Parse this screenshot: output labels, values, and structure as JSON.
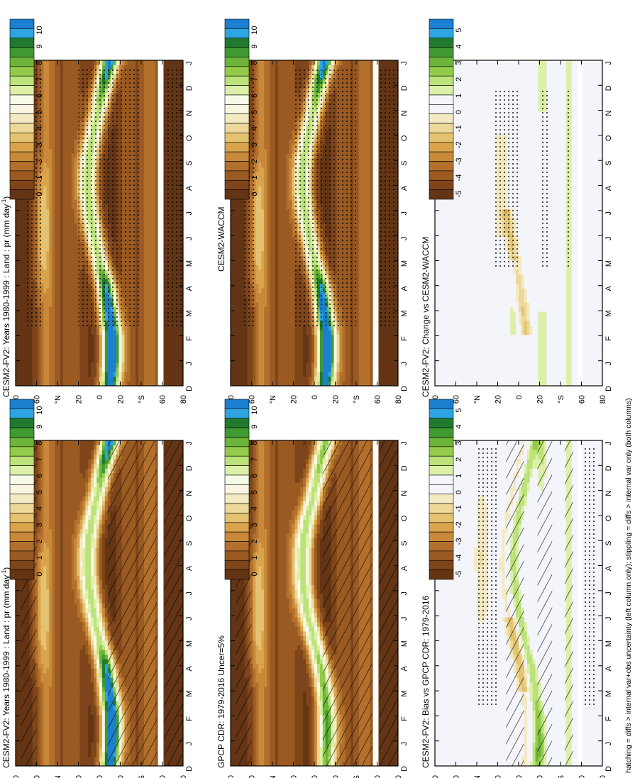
{
  "chart_data": {
    "type": "heatmap",
    "footnote": "hatching = diffs > internal var+obs uncertainty (left column only); stippling = diffs > internal var only (both columns)",
    "x_ticks": [
      "D",
      "J",
      "F",
      "M",
      "A",
      "M",
      "J",
      "J",
      "A",
      "S",
      "O",
      "N",
      "D",
      "J"
    ],
    "y_ticks": [
      "80",
      "60",
      "°N",
      "20",
      "0",
      "20",
      "°S",
      "60",
      "80"
    ],
    "colorbars": {
      "absolute": {
        "labels": [
          "10",
          "9",
          "8",
          "7",
          "6",
          "5",
          "4",
          "3",
          "2",
          "1",
          "0"
        ],
        "colors": [
          "#1c7fd0",
          "#2ea4e2",
          "#1f7a2e",
          "#3f9a32",
          "#6cb43a",
          "#94cb4a",
          "#bce27a",
          "#dcf0a8",
          "#f6fbe8",
          "#fbf6e2",
          "#f4eac2",
          "#ecd99a",
          "#e3c270",
          "#d9a44c",
          "#c8893a",
          "#b3702c",
          "#9a5a22",
          "#7e451a",
          "#643514"
        ]
      },
      "difference": {
        "labels": [
          "5",
          "4",
          "3",
          "2",
          "1",
          "0",
          "-1",
          "-2",
          "-3",
          "-4",
          "-5"
        ],
        "colors": [
          "#1c7fd0",
          "#2ea4e2",
          "#1f7a2e",
          "#3f9a32",
          "#6cb43a",
          "#94cb4a",
          "#bce27a",
          "#dcf0a8",
          "#f4f5fb",
          "#f4f5fb",
          "#f4eac2",
          "#ecd99a",
          "#e3c270",
          "#d9a44c",
          "#c8893a",
          "#b3702c",
          "#9a5a22",
          "#7e451a",
          "#643514"
        ]
      }
    },
    "panels": [
      {
        "id": "model-fv2-left",
        "title": "CESM2-FV2: Years 1980-1999 : Land : pr (mm day",
        "units_sup": "-1",
        "title_end": ")",
        "kind": "absolute",
        "itcz": [
          -10,
          -12,
          -12,
          -9,
          -6,
          0,
          5,
          9,
          11,
          10,
          6,
          1,
          -4,
          -10
        ],
        "peak": [
          11,
          12,
          12,
          11,
          10,
          7,
          7,
          7,
          7,
          7,
          7,
          7,
          9,
          11
        ],
        "hatch": true,
        "stipple": false
      },
      {
        "id": "obs-gpcp",
        "title": "GPCP CDR: 1979-2016 Uncer=5%",
        "units_sup": "",
        "title_end": "",
        "kind": "absolute",
        "itcz": [
          -11,
          -12,
          -12,
          -10,
          -6,
          0,
          6,
          10,
          11,
          10,
          6,
          0,
          -5,
          -11
        ],
        "peak": [
          8,
          8.5,
          8.5,
          8,
          7.5,
          7,
          7,
          7,
          7,
          7,
          7,
          7,
          7.5,
          8
        ],
        "hatch": true,
        "stipple": false
      },
      {
        "id": "bias-fv2",
        "title": "CESM2-FV2: Bias vs GPCP CDR: 1979-2016",
        "units_sup": "",
        "title_end": "",
        "kind": "difference",
        "hatch": true,
        "stipple": true
      },
      {
        "id": "model-fv2-right",
        "title": "CESM2-FV2: Years 1980-1999 : Land : pr (mm day",
        "units_sup": "-1",
        "title_end": ")",
        "kind": "absolute",
        "itcz": [
          -10,
          -12,
          -12,
          -9,
          -6,
          0,
          5,
          9,
          11,
          10,
          6,
          1,
          -4,
          -10
        ],
        "peak": [
          11,
          12,
          12,
          11,
          10,
          7,
          7,
          7,
          7,
          7,
          7,
          7,
          9,
          11
        ],
        "hatch": false,
        "stipple": true
      },
      {
        "id": "model-waccm",
        "title": "CESM2-WACCM",
        "units_sup": "",
        "title_end": "",
        "kind": "absolute",
        "itcz": [
          -10,
          -12,
          -12,
          -9,
          -6,
          0,
          5,
          9,
          11,
          10,
          6,
          1,
          -4,
          -10
        ],
        "peak": [
          11,
          12,
          12,
          11,
          10,
          7,
          7,
          7,
          7,
          7,
          7,
          7,
          9,
          11
        ],
        "hatch": false,
        "stipple": true
      },
      {
        "id": "change-fv2-waccm",
        "title": "CESM2-FV2: Change vs CESM2-WACCM",
        "units_sup": "",
        "title_end": "",
        "kind": "difference",
        "hatch": false,
        "stipple": true
      }
    ]
  }
}
